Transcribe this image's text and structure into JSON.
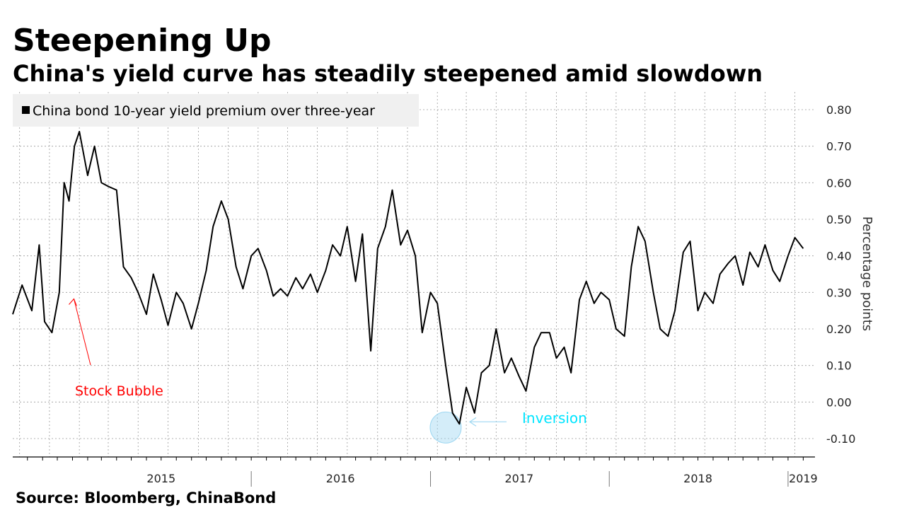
{
  "title": "Steepening Up",
  "subtitle": "China's yield curve has steadily steepened amid slowdown",
  "source": "Source: Bloomberg, ChinaBond",
  "colors": {
    "line": "#000000",
    "grid": "#9a9a9a",
    "legend_bg": "#f0f0f0",
    "stock_bubble": "#ff0000",
    "inversion": "#00e5ff",
    "inversion_circle": "#9fd8f2"
  },
  "chart_data": {
    "type": "line",
    "legend": "China bond 10-year yield premium over three-year",
    "ylabel": "Percentage points",
    "ylim": [
      -0.15,
      0.82
    ],
    "y_ticks": [
      0.8,
      0.7,
      0.6,
      0.5,
      0.4,
      0.3,
      0.2,
      0.1,
      0.0,
      -0.1
    ],
    "y_tick_labels": [
      "0.80",
      "0.70",
      "0.60",
      "0.50",
      "0.40",
      "0.30",
      "0.20",
      "0.10",
      "0.00",
      "-0.10"
    ],
    "x_labels": [
      "2015",
      "2016",
      "2017",
      "2018",
      "2019"
    ],
    "legend_position": "top-left",
    "grid": true,
    "series": [
      {
        "name": "China bond 10-year yield premium over three-year",
        "x": [
          "2014-09-01",
          "2014-09-20",
          "2014-10-10",
          "2014-10-25",
          "2014-11-05",
          "2014-11-20",
          "2014-12-05",
          "2014-12-15",
          "2014-12-25",
          "2015-01-05",
          "2015-01-15",
          "2015-02-01",
          "2015-02-15",
          "2015-03-01",
          "2015-03-15",
          "2015-04-01",
          "2015-04-15",
          "2015-05-01",
          "2015-05-15",
          "2015-06-01",
          "2015-06-15",
          "2015-07-01",
          "2015-07-15",
          "2015-08-01",
          "2015-08-15",
          "2015-09-01",
          "2015-09-15",
          "2015-10-01",
          "2015-10-15",
          "2015-11-01",
          "2015-11-15",
          "2015-12-01",
          "2015-12-15",
          "2016-01-01",
          "2016-01-15",
          "2016-02-01",
          "2016-02-15",
          "2016-03-01",
          "2016-03-15",
          "2016-04-01",
          "2016-04-15",
          "2016-05-01",
          "2016-05-15",
          "2016-06-01",
          "2016-06-15",
          "2016-07-01",
          "2016-07-15",
          "2016-08-01",
          "2016-08-15",
          "2016-09-01",
          "2016-09-15",
          "2016-10-01",
          "2016-10-15",
          "2016-11-01",
          "2016-11-15",
          "2016-12-01",
          "2016-12-15",
          "2017-01-01",
          "2017-01-15",
          "2017-02-01",
          "2017-02-15",
          "2017-03-01",
          "2017-03-15",
          "2017-04-01",
          "2017-04-15",
          "2017-05-01",
          "2017-05-15",
          "2017-06-01",
          "2017-06-15",
          "2017-07-01",
          "2017-07-15",
          "2017-08-01",
          "2017-08-15",
          "2017-09-01",
          "2017-09-15",
          "2017-10-01",
          "2017-10-15",
          "2017-11-01",
          "2017-11-15",
          "2017-12-01",
          "2017-12-15",
          "2018-01-01",
          "2018-01-15",
          "2018-02-01",
          "2018-02-15",
          "2018-03-01",
          "2018-03-15",
          "2018-04-01",
          "2018-04-15",
          "2018-05-01",
          "2018-05-15",
          "2018-06-01",
          "2018-06-15",
          "2018-07-01",
          "2018-07-15",
          "2018-08-01",
          "2018-08-15",
          "2018-09-01",
          "2018-09-15",
          "2018-10-01",
          "2018-10-15",
          "2018-11-01",
          "2018-11-15",
          "2018-12-01",
          "2018-12-15",
          "2019-01-01",
          "2019-01-15",
          "2019-02-01"
        ],
        "y": [
          0.24,
          0.32,
          0.25,
          0.43,
          0.22,
          0.19,
          0.3,
          0.6,
          0.55,
          0.7,
          0.74,
          0.62,
          0.7,
          0.6,
          0.59,
          0.58,
          0.37,
          0.34,
          0.3,
          0.24,
          0.35,
          0.28,
          0.21,
          0.3,
          0.27,
          0.2,
          0.27,
          0.36,
          0.48,
          0.55,
          0.5,
          0.37,
          0.31,
          0.4,
          0.42,
          0.36,
          0.29,
          0.31,
          0.29,
          0.34,
          0.31,
          0.35,
          0.3,
          0.36,
          0.43,
          0.4,
          0.48,
          0.33,
          0.46,
          0.14,
          0.42,
          0.48,
          0.58,
          0.43,
          0.47,
          0.4,
          0.19,
          0.3,
          0.27,
          0.1,
          -0.03,
          -0.06,
          0.04,
          -0.03,
          0.08,
          0.1,
          0.2,
          0.08,
          0.12,
          0.07,
          0.03,
          0.15,
          0.19,
          0.19,
          0.12,
          0.15,
          0.08,
          0.28,
          0.33,
          0.27,
          0.3,
          0.28,
          0.2,
          0.18,
          0.37,
          0.48,
          0.44,
          0.3,
          0.2,
          0.18,
          0.25,
          0.41,
          0.44,
          0.25,
          0.3,
          0.27,
          0.35,
          0.38,
          0.4,
          0.32,
          0.41,
          0.37,
          0.43,
          0.36,
          0.33,
          0.4,
          0.45,
          0.42
        ]
      }
    ],
    "annotations": [
      {
        "text": "Stock Bubble",
        "date": "2015-01-01",
        "value": 0.29
      },
      {
        "text": "Inversion",
        "date": "2017-02-01",
        "value": -0.06
      }
    ]
  }
}
